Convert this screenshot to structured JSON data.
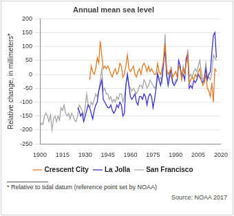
{
  "chart_data": {
    "type": "line",
    "title": "Annual mean sea level",
    "y_label": "Relative change, in millimeters*",
    "footnote": "* Relative to tidal datum (reference point set by NOAA)",
    "source": "Source: NOAA 2017",
    "x": [
      1900,
      1901,
      1902,
      1903,
      1904,
      1905,
      1906,
      1907,
      1908,
      1909,
      1910,
      1911,
      1912,
      1913,
      1914,
      1915,
      1916,
      1917,
      1918,
      1919,
      1920,
      1921,
      1922,
      1923,
      1924,
      1925,
      1926,
      1927,
      1928,
      1929,
      1930,
      1931,
      1932,
      1933,
      1934,
      1935,
      1936,
      1937,
      1938,
      1939,
      1940,
      1941,
      1942,
      1943,
      1944,
      1945,
      1946,
      1947,
      1948,
      1949,
      1950,
      1951,
      1952,
      1953,
      1954,
      1955,
      1956,
      1957,
      1958,
      1959,
      1960,
      1961,
      1962,
      1963,
      1964,
      1965,
      1966,
      1967,
      1968,
      1969,
      1970,
      1971,
      1972,
      1973,
      1974,
      1975,
      1976,
      1977,
      1978,
      1979,
      1980,
      1981,
      1982,
      1983,
      1984,
      1985,
      1986,
      1987,
      1988,
      1989,
      1990,
      1991,
      1992,
      1993,
      1994,
      1995,
      1996,
      1997,
      1998,
      1999,
      2000,
      2001,
      2002,
      2003,
      2004,
      2005,
      2006,
      2007,
      2008,
      2009,
      2010,
      2011,
      2012,
      2013,
      2014,
      2015,
      2016,
      2017
    ],
    "series": [
      {
        "name": "Crescent City",
        "color": "#e07b24",
        "values": [
          null,
          null,
          null,
          null,
          null,
          null,
          null,
          null,
          null,
          null,
          null,
          null,
          null,
          null,
          null,
          null,
          null,
          null,
          null,
          null,
          null,
          null,
          null,
          null,
          null,
          null,
          null,
          null,
          null,
          null,
          null,
          null,
          null,
          -20,
          30,
          10,
          0,
          20,
          60,
          40,
          120,
          70,
          20,
          30,
          20,
          30,
          20,
          0,
          -10,
          10,
          20,
          0,
          10,
          40,
          30,
          -10,
          0,
          30,
          70,
          20,
          10,
          20,
          30,
          0,
          -10,
          10,
          20,
          0,
          30,
          40,
          30,
          10,
          30,
          10,
          20,
          10,
          0,
          0,
          40,
          10,
          0,
          20,
          50,
          110,
          20,
          0,
          10,
          20,
          -10,
          0,
          10,
          -10,
          30,
          20,
          -20,
          20,
          0,
          40,
          70,
          -30,
          -20,
          -10,
          -20,
          0,
          -10,
          10,
          20,
          -20,
          -40,
          -30,
          0,
          -50,
          -60,
          -80,
          -30,
          -100,
          20,
          10
        ]
      },
      {
        "name": "La Jolla",
        "color": "#3a2fd0",
        "values": [
          null,
          null,
          null,
          null,
          null,
          null,
          null,
          null,
          null,
          null,
          null,
          null,
          null,
          null,
          null,
          null,
          null,
          null,
          null,
          null,
          null,
          null,
          null,
          null,
          null,
          -120,
          -130,
          -150,
          -140,
          -170,
          -150,
          -130,
          -110,
          -120,
          -140,
          -160,
          -130,
          -110,
          -100,
          -60,
          -40,
          -20,
          -90,
          -100,
          -110,
          -120,
          -120,
          -110,
          -130,
          -140,
          -130,
          -110,
          -120,
          -100,
          -110,
          -150,
          -140,
          -40,
          0,
          -40,
          -80,
          -90,
          -80,
          -70,
          -100,
          -110,
          -80,
          -80,
          -90,
          -70,
          -80,
          -110,
          -80,
          -70,
          -80,
          -120,
          -90,
          -50,
          0,
          -20,
          -40,
          -10,
          40,
          90,
          0,
          -40,
          -10,
          20,
          -30,
          -40,
          -30,
          -20,
          50,
          30,
          -10,
          0,
          -20,
          60,
          70,
          -50,
          -40,
          -50,
          -20,
          -30,
          -20,
          0,
          -10,
          -20,
          -30,
          -20,
          20,
          -20,
          0,
          10,
          80,
          140,
          150,
          60
        ]
      },
      {
        "name": "San Francisco",
        "color": "#a6a6a6",
        "values": [
          -190,
          -175,
          -180,
          -150,
          -140,
          -150,
          -170,
          -145,
          -200,
          -160,
          -150,
          -170,
          -150,
          -165,
          -120,
          -130,
          -110,
          -140,
          -150,
          -140,
          -160,
          -140,
          -150,
          -165,
          -170,
          -150,
          -110,
          -120,
          -130,
          -150,
          -120,
          -70,
          -110,
          -120,
          -100,
          -110,
          -90,
          -70,
          -80,
          -60,
          -20,
          20,
          -60,
          -50,
          -70,
          -70,
          -90,
          -80,
          -100,
          -90,
          -100,
          -80,
          -90,
          -70,
          -70,
          -100,
          -80,
          -40,
          0,
          -40,
          -50,
          -60,
          -50,
          -60,
          -70,
          -60,
          -40,
          -40,
          -50,
          -20,
          -30,
          -50,
          -40,
          -20,
          -30,
          -40,
          -50,
          -40,
          10,
          -20,
          -10,
          -30,
          60,
          145,
          -10,
          -20,
          10,
          -10,
          -30,
          -30,
          -20,
          -20,
          30,
          20,
          -10,
          30,
          10,
          40,
          90,
          -10,
          0,
          -10,
          10,
          20,
          10,
          30,
          50,
          10,
          -20,
          -10,
          40,
          -10,
          -10,
          -20,
          10,
          70,
          60,
          50
        ]
      }
    ],
    "xlim": [
      1900,
      2020
    ],
    "xticks": [
      1900,
      1915,
      1930,
      1945,
      1960,
      1975,
      1990,
      2005,
      2020
    ],
    "ylim": [
      -250,
      200
    ],
    "yticks": [
      -250,
      -200,
      -150,
      -100,
      -50,
      0,
      50,
      100,
      150,
      200
    ],
    "grid": true,
    "legend": "bottom"
  }
}
